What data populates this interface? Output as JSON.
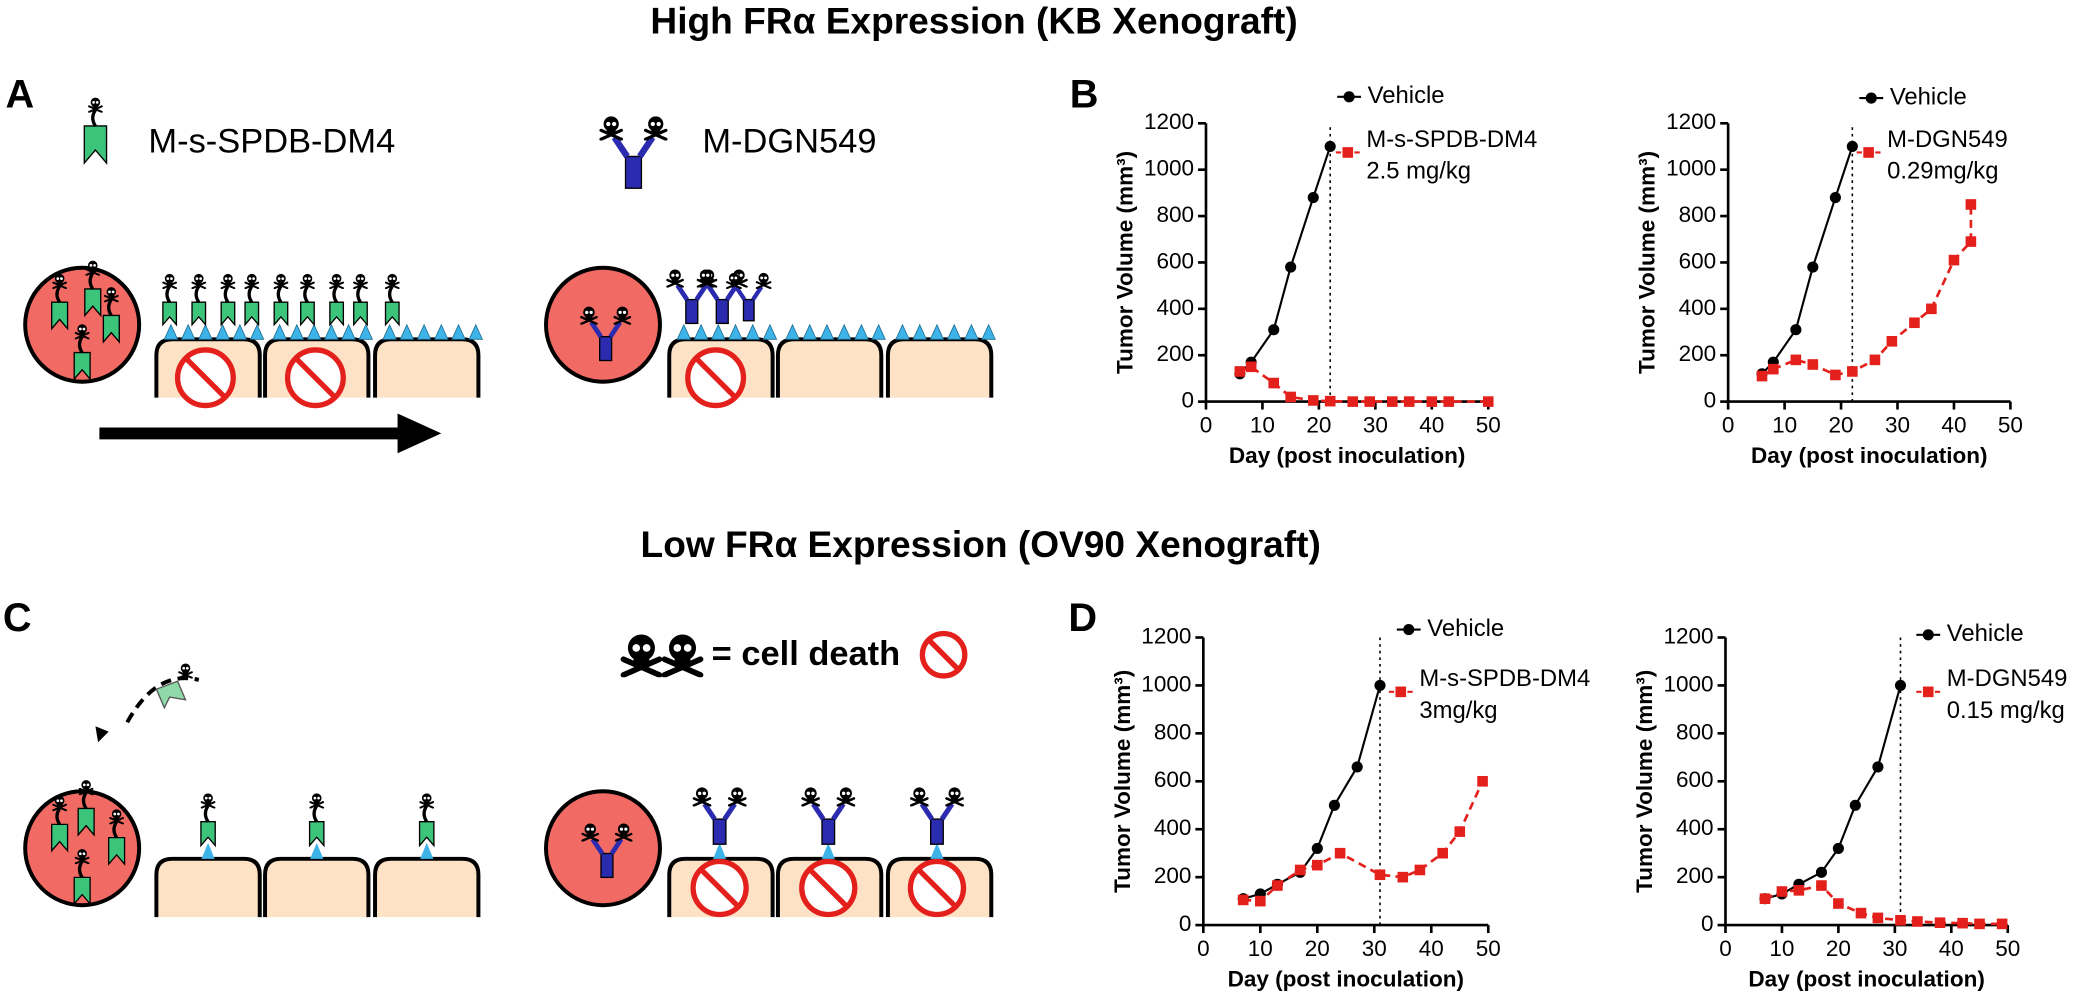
{
  "headings": [
    "High FRα Expression (KB Xenograft)",
    "Low FRα Expression (OV90 Xenograft)"
  ],
  "panels": [
    "A",
    "B",
    "C",
    "D"
  ],
  "diagram": {
    "labels": [
      "M-s-SPDB-DM4",
      "M-DGN549"
    ],
    "legend": "= cell death"
  },
  "chart_data": [
    {
      "type": "line",
      "x_label": "Day (post inoculation)",
      "y_label": "Tumor Volume (mm³)",
      "xlim": [
        0,
        50
      ],
      "xticks": [
        0,
        10,
        20,
        30,
        40,
        50
      ],
      "ylim": [
        0,
        1200
      ],
      "yticks": [
        0,
        200,
        400,
        600,
        800,
        1000,
        1200
      ],
      "vline": 22,
      "series": [
        {
          "name": "Vehicle",
          "color": "#000000",
          "x": [
            6,
            8,
            12,
            15,
            19,
            22
          ],
          "values": [
            120,
            170,
            310,
            580,
            880,
            1100
          ]
        },
        {
          "name": "M-s-SPDB-DM4",
          "dose": "2.5 mg/kg",
          "color": "#e3201b",
          "dashed": true,
          "x": [
            6,
            8,
            12,
            15,
            19,
            22,
            26,
            29,
            33,
            36,
            40,
            43,
            50
          ],
          "values": [
            130,
            150,
            80,
            20,
            5,
            2,
            0,
            0,
            0,
            0,
            0,
            0,
            0
          ]
        }
      ]
    },
    {
      "type": "line",
      "x_label": "Day (post inoculation)",
      "y_label": "Tumor Volume (mm³)",
      "xlim": [
        0,
        50
      ],
      "xticks": [
        0,
        10,
        20,
        30,
        40,
        50
      ],
      "ylim": [
        0,
        1200
      ],
      "yticks": [
        0,
        200,
        400,
        600,
        800,
        1000,
        1200
      ],
      "vline": 22,
      "series": [
        {
          "name": "Vehicle",
          "color": "#000000",
          "x": [
            6,
            8,
            12,
            15,
            19,
            22
          ],
          "values": [
            120,
            170,
            310,
            580,
            880,
            1100
          ]
        },
        {
          "name": "M-DGN549",
          "dose": "0.29mg/kg",
          "color": "#e3201b",
          "dashed": true,
          "x": [
            6,
            8,
            12,
            15,
            19,
            22,
            26,
            29,
            33,
            36,
            40,
            43,
            43
          ],
          "values": [
            110,
            140,
            180,
            160,
            115,
            130,
            180,
            260,
            340,
            400,
            610,
            690,
            850
          ]
        }
      ]
    },
    {
      "type": "line",
      "x_label": "Day (post inoculation)",
      "y_label": "Tumor Volume (mm³)",
      "xlim": [
        0,
        50
      ],
      "xticks": [
        0,
        10,
        20,
        30,
        40,
        50
      ],
      "ylim": [
        0,
        1200
      ],
      "yticks": [
        0,
        200,
        400,
        600,
        800,
        1000,
        1200
      ],
      "vline": 31,
      "series": [
        {
          "name": "Vehicle",
          "color": "#000000",
          "x": [
            7,
            10,
            13,
            17,
            20,
            23,
            27,
            31
          ],
          "values": [
            110,
            130,
            170,
            220,
            320,
            500,
            660,
            1000
          ]
        },
        {
          "name": "M-s-SPDB-DM4",
          "dose": "3mg/kg",
          "color": "#e3201b",
          "dashed": true,
          "x": [
            7,
            10,
            13,
            17,
            20,
            24,
            31,
            35,
            38,
            42,
            45,
            49
          ],
          "values": [
            105,
            100,
            165,
            230,
            250,
            300,
            210,
            200,
            230,
            300,
            390,
            600
          ]
        }
      ]
    },
    {
      "type": "line",
      "x_label": "Day (post inoculation)",
      "y_label": "Tumor Volume (mm³)",
      "xlim": [
        0,
        50
      ],
      "xticks": [
        0,
        10,
        20,
        30,
        40,
        50
      ],
      "ylim": [
        0,
        1200
      ],
      "yticks": [
        0,
        200,
        400,
        600,
        800,
        1000,
        1200
      ],
      "vline": 31,
      "series": [
        {
          "name": "Vehicle",
          "color": "#000000",
          "x": [
            7,
            10,
            13,
            17,
            20,
            23,
            27,
            31
          ],
          "values": [
            110,
            130,
            170,
            220,
            320,
            500,
            660,
            1000
          ]
        },
        {
          "name": "M-DGN549",
          "dose": "0.15 mg/kg",
          "color": "#e3201b",
          "dashed": true,
          "x": [
            7,
            10,
            13,
            17,
            20,
            24,
            27,
            31,
            34,
            38,
            42,
            45,
            49
          ],
          "values": [
            110,
            140,
            145,
            165,
            90,
            50,
            30,
            20,
            15,
            10,
            8,
            5,
            5
          ]
        }
      ]
    }
  ]
}
